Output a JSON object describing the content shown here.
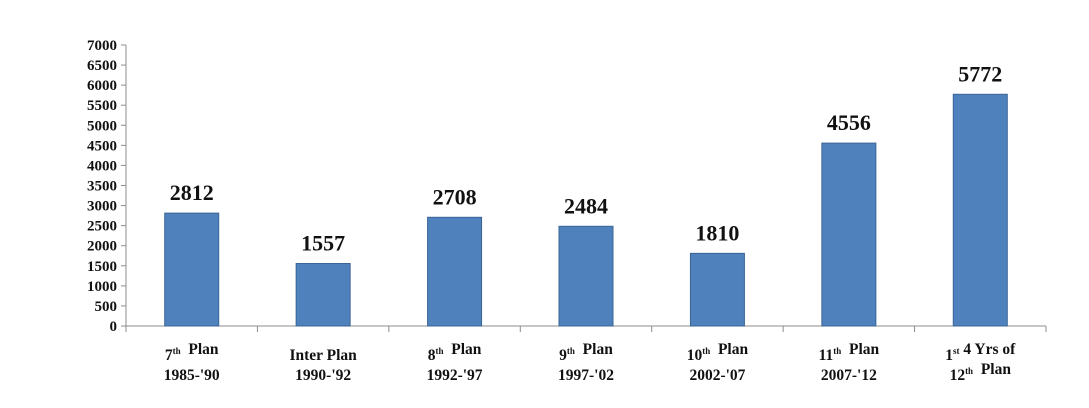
{
  "chart_data": {
    "type": "bar",
    "categories": [
      {
        "line1_parts": [
          {
            "t": "7"
          },
          {
            "t": "th",
            "sup": true
          },
          {
            "t": "  Plan"
          }
        ],
        "line2": "1985-'90"
      },
      {
        "line1_parts": [
          {
            "t": "Inter Plan"
          }
        ],
        "line2": "1990-'92"
      },
      {
        "line1_parts": [
          {
            "t": "8"
          },
          {
            "t": "th",
            "sup": true
          },
          {
            "t": "  Plan"
          }
        ],
        "line2": "1992-'97"
      },
      {
        "line1_parts": [
          {
            "t": "9"
          },
          {
            "t": "th",
            "sup": true
          },
          {
            "t": "  Plan"
          }
        ],
        "line2": "1997-'02"
      },
      {
        "line1_parts": [
          {
            "t": "10"
          },
          {
            "t": "th",
            "sup": true
          },
          {
            "t": "  Plan"
          }
        ],
        "line2": "2002-'07"
      },
      {
        "line1_parts": [
          {
            "t": "11"
          },
          {
            "t": "th",
            "sup": true
          },
          {
            "t": "  Plan"
          }
        ],
        "line2": "2007-'12"
      },
      {
        "line1_parts": [
          {
            "t": "1"
          },
          {
            "t": "st",
            "sup": true
          },
          {
            "t": " 4 Yrs of"
          }
        ],
        "line2_parts": [
          {
            "t": "12"
          },
          {
            "t": "th",
            "sup": true
          },
          {
            "t": "  Plan"
          }
        ]
      }
    ],
    "values": [
      2812,
      1557,
      2708,
      2484,
      1810,
      4556,
      5772
    ],
    "data_labels": [
      "2812",
      "1557",
      "2708",
      "2484",
      "1810",
      "4556",
      "5772"
    ],
    "ylim": [
      0,
      7000
    ],
    "yticks": [
      "0",
      "500",
      "1000",
      "1500",
      "2000",
      "2500",
      "3000",
      "3500",
      "4000",
      "4500",
      "5000",
      "5500",
      "6000",
      "6500",
      "7000"
    ],
    "grid": false,
    "legend": "none",
    "title": "",
    "xlabel": "",
    "ylabel": "",
    "colors": {
      "bar_fill": "#4f81bd",
      "bar_edge": "#3a6595",
      "axis": "#8c8c8c",
      "text": "#111111"
    }
  }
}
